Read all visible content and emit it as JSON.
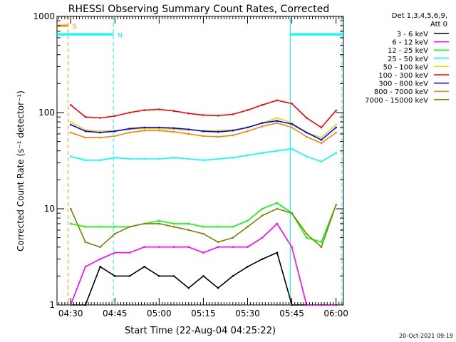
{
  "chart_data": {
    "type": "line",
    "title": "RHESSI Observing Summary Count Rates, Corrected",
    "xlabel": "Start Time (22-Aug-04 04:25:22)",
    "ylabel": "Corrected Count Rate (s⁻¹ detector⁻¹)",
    "y_scale": "log",
    "ylim": [
      1,
      1000
    ],
    "xlim": [
      "04:25:22",
      "06:02:30"
    ],
    "x_ticks": [
      "04:30",
      "04:45",
      "05:00",
      "05:15",
      "05:30",
      "05:45",
      "06:00"
    ],
    "y_ticks": [
      "1",
      "10",
      "100",
      "1000"
    ],
    "legend": {
      "position": "right",
      "header": [
        "Det 1,3,4,5,6,9,",
        "Att 0"
      ],
      "entries": [
        "3 - 6 keV",
        "6 - 12 keV",
        "12 - 25 keV",
        "25 - 50 keV",
        "50 - 100 keV",
        "100 - 300 keV",
        "300 - 800 keV",
        "800 - 7000 keV",
        "7000 - 15000 keV"
      ]
    },
    "footer_timestamp": "20-Oct-2021 09:19",
    "flag_bars": [
      {
        "label": "S",
        "color": "#ff8800",
        "x_start": "04:25:22",
        "x_end": "04:29:10",
        "y": 800
      },
      {
        "label": "N",
        "color": "#00ffff",
        "x_start": "04:25:22",
        "x_end": "04:44:30",
        "y": 650
      },
      {
        "label": "",
        "color": "#00ffff",
        "x_start": "05:44:30",
        "x_end": "06:02:30",
        "y": 650
      }
    ],
    "vertical_markers": [
      {
        "x": "04:29:10",
        "color": "#ff8800",
        "style": "dashed"
      },
      {
        "x": "04:44:30",
        "color": "#00ffff",
        "style": "dashed"
      },
      {
        "x": "05:44:30",
        "color": "#00ffff",
        "style": "solid"
      },
      {
        "x": "06:02:00",
        "color": "#00ffff",
        "style": "dashed"
      }
    ],
    "x": [
      "04:30",
      "04:35",
      "04:40",
      "04:45",
      "04:50",
      "04:55",
      "05:00",
      "05:05",
      "05:10",
      "05:15",
      "05:20",
      "05:25",
      "05:30",
      "05:35",
      "05:40",
      "05:45",
      "05:50",
      "05:55",
      "06:00"
    ],
    "series": [
      {
        "name": "3 - 6 keV",
        "color": "#000000",
        "values": [
          1.0,
          1.0,
          2.5,
          2.0,
          2.0,
          2.5,
          2.0,
          2.0,
          1.5,
          2.0,
          1.5,
          2.0,
          2.5,
          3.0,
          3.5,
          1.0,
          1.0,
          1.0,
          1.0
        ]
      },
      {
        "name": "6 - 12 keV",
        "color": "#ff00ff",
        "values": [
          1.0,
          2.5,
          3.0,
          3.5,
          3.5,
          4.0,
          4.0,
          4.0,
          4.0,
          3.5,
          4.0,
          4.0,
          4.0,
          5.0,
          7.0,
          4.0,
          1.0,
          1.0,
          1.0
        ]
      },
      {
        "name": "12 - 25 keV",
        "color": "#00ff00",
        "values": [
          7.0,
          6.5,
          6.5,
          6.5,
          6.5,
          7.0,
          7.5,
          7.0,
          7.0,
          6.5,
          6.5,
          6.5,
          7.5,
          10.0,
          11.5,
          9.0,
          5.0,
          4.5,
          11.0
        ]
      },
      {
        "name": "25 - 50 keV",
        "color": "#00ffff",
        "values": [
          35,
          32,
          32,
          34,
          33,
          33,
          33,
          34,
          33,
          32,
          33,
          34,
          36,
          38,
          40,
          42,
          35,
          31,
          38
        ]
      },
      {
        "name": "50 - 100 keV",
        "color": "#dddd00",
        "values": [
          80,
          66,
          64,
          65,
          67,
          68,
          68,
          67,
          66,
          65,
          65,
          66,
          70,
          78,
          88,
          78,
          62,
          55,
          75
        ]
      },
      {
        "name": "100 - 300 keV",
        "color": "#ff0000",
        "values": [
          120,
          90,
          88,
          92,
          100,
          106,
          108,
          104,
          98,
          94,
          93,
          96,
          106,
          120,
          134,
          124,
          88,
          70,
          105
        ]
      },
      {
        "name": "300 - 800 keV",
        "color": "#0000ff",
        "values": [
          75,
          64,
          62,
          64,
          68,
          70,
          70,
          69,
          67,
          64,
          63,
          65,
          70,
          78,
          82,
          76,
          62,
          52,
          70
        ]
      },
      {
        "name": "800 - 7000 keV",
        "color": "#ff8000",
        "values": [
          62,
          55,
          55,
          57,
          62,
          65,
          65,
          63,
          60,
          57,
          56,
          58,
          64,
          72,
          78,
          70,
          56,
          48,
          62
        ]
      },
      {
        "name": "7000 - 15000 keV",
        "color": "#808000",
        "values": [
          10.0,
          4.5,
          4.0,
          5.5,
          6.5,
          7.0,
          7.0,
          6.5,
          6.0,
          5.5,
          4.5,
          5.0,
          6.5,
          8.5,
          10.0,
          9.0,
          5.5,
          4.0,
          11.0
        ]
      }
    ]
  }
}
